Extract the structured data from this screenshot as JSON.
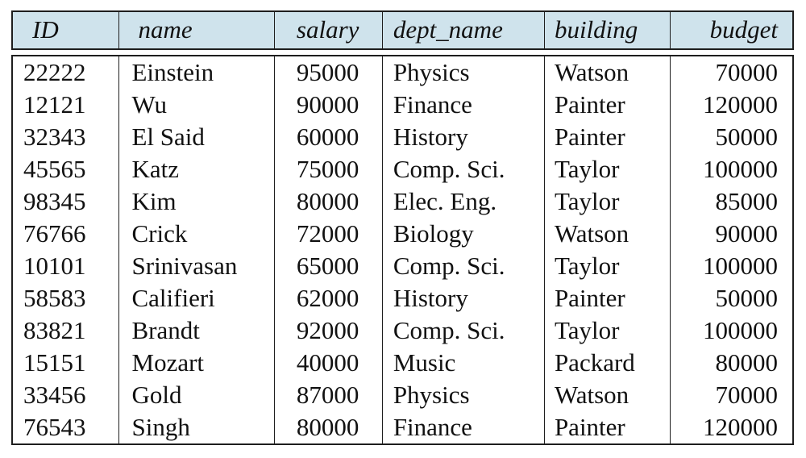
{
  "table": {
    "columns": [
      {
        "key": "id",
        "label": "ID"
      },
      {
        "key": "name",
        "label": "name"
      },
      {
        "key": "salary",
        "label": "salary"
      },
      {
        "key": "dept_name",
        "label": "dept_name"
      },
      {
        "key": "building",
        "label": "building"
      },
      {
        "key": "budget",
        "label": "budget"
      }
    ],
    "rows": [
      [
        "22222",
        "Einstein",
        "95000",
        "Physics",
        "Watson",
        "70000"
      ],
      [
        "12121",
        "Wu",
        "90000",
        "Finance",
        "Painter",
        "120000"
      ],
      [
        "32343",
        "El Said",
        "60000",
        "History",
        "Painter",
        "50000"
      ],
      [
        "45565",
        "Katz",
        "75000",
        "Comp. Sci.",
        "Taylor",
        "100000"
      ],
      [
        "98345",
        "Kim",
        "80000",
        "Elec. Eng.",
        "Taylor",
        "85000"
      ],
      [
        "76766",
        "Crick",
        "72000",
        "Biology",
        "Watson",
        "90000"
      ],
      [
        "10101",
        "Srinivasan",
        "65000",
        "Comp. Sci.",
        "Taylor",
        "100000"
      ],
      [
        "58583",
        "Califieri",
        "62000",
        "History",
        "Painter",
        "50000"
      ],
      [
        "83821",
        "Brandt",
        "92000",
        "Comp. Sci.",
        "Taylor",
        "100000"
      ],
      [
        "15151",
        "Mozart",
        "40000",
        "Music",
        "Packard",
        "80000"
      ],
      [
        "33456",
        "Gold",
        "87000",
        "Physics",
        "Watson",
        "70000"
      ],
      [
        "76543",
        "Singh",
        "80000",
        "Finance",
        "Painter",
        "120000"
      ]
    ]
  },
  "colors": {
    "header_bg": "#cfe3ec",
    "border": "#1e1e1e",
    "text": "#111111",
    "background": "#ffffff"
  }
}
